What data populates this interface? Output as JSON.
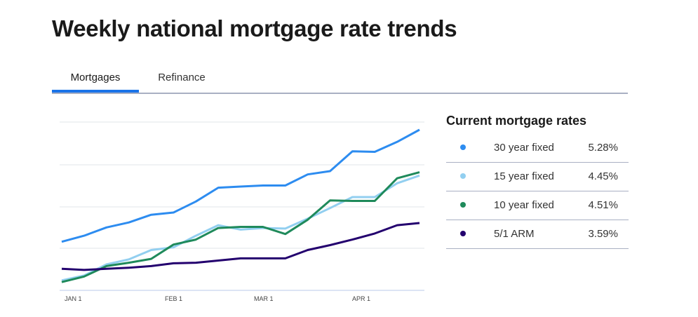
{
  "title": "Weekly national mortgage rate trends",
  "tabs": [
    {
      "label": "Mortgages",
      "active": true
    },
    {
      "label": "Refinance",
      "active": false
    }
  ],
  "panel": {
    "title": "Current mortgage rates",
    "rows": [
      {
        "label": "30 year fixed",
        "value": "5.28%",
        "color": "#2d8cf0"
      },
      {
        "label": "15 year fixed",
        "value": "4.45%",
        "color": "#92cff0"
      },
      {
        "label": "10 year fixed",
        "value": "4.51%",
        "color": "#1f8a5b"
      },
      {
        "label": "5/1 ARM",
        "value": "3.59%",
        "color": "#23006e"
      }
    ]
  },
  "chart_data": {
    "type": "line",
    "title": "",
    "xlabel": "",
    "ylabel": "",
    "x_tick_labels": [
      "JAN 1",
      "FEB 1",
      "MAR 1",
      "APR 1"
    ],
    "x": [
      1,
      2,
      3,
      4,
      5,
      6,
      7,
      8,
      9,
      10,
      11,
      12,
      13,
      14,
      15,
      16,
      17
    ],
    "ylim": [
      2.37,
      5.5
    ],
    "grid": true,
    "series": [
      {
        "name": "30 year fixed",
        "color": "#2d8cf0",
        "values": [
          3.25,
          3.36,
          3.51,
          3.6,
          3.74,
          3.78,
          3.98,
          4.23,
          4.25,
          4.27,
          4.27,
          4.47,
          4.53,
          4.89,
          4.88,
          5.06,
          5.28
        ]
      },
      {
        "name": "15 year fixed",
        "color": "#92cff0",
        "values": [
          2.55,
          2.64,
          2.84,
          2.93,
          3.1,
          3.15,
          3.36,
          3.55,
          3.47,
          3.5,
          3.49,
          3.67,
          3.86,
          4.06,
          4.06,
          4.31,
          4.45
        ]
      },
      {
        "name": "10 year fixed",
        "color": "#1f8a5b",
        "values": [
          2.52,
          2.62,
          2.81,
          2.87,
          2.94,
          3.2,
          3.29,
          3.5,
          3.52,
          3.52,
          3.39,
          3.65,
          4.0,
          3.99,
          3.99,
          4.4,
          4.51
        ]
      },
      {
        "name": "5/1 ARM",
        "color": "#23006e",
        "values": [
          2.76,
          2.74,
          2.76,
          2.78,
          2.81,
          2.86,
          2.87,
          2.91,
          2.95,
          2.95,
          2.95,
          3.1,
          3.19,
          3.29,
          3.4,
          3.55,
          3.59
        ]
      }
    ]
  }
}
